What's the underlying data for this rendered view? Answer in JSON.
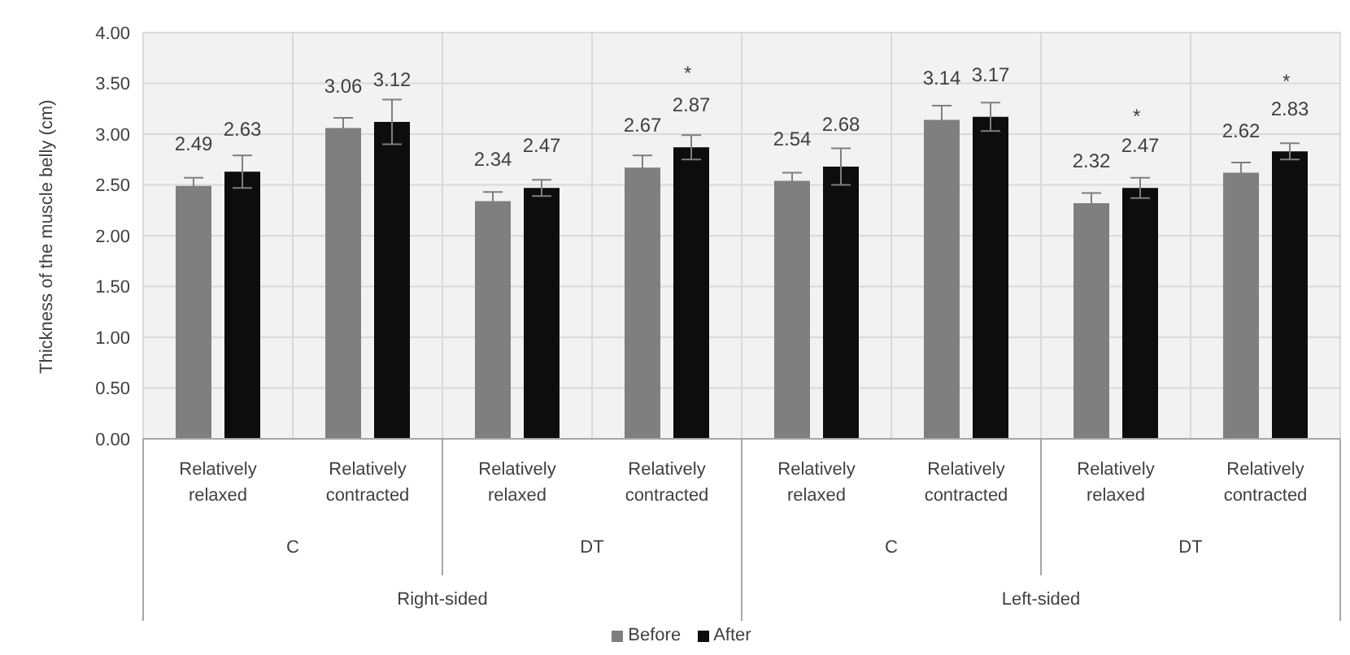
{
  "chart_data": {
    "type": "bar",
    "ylabel": "Thickness of the muscle belly (cm)",
    "categories": [
      "Relatively relaxed",
      "Relatively contracted",
      "Relatively relaxed",
      "Relatively contracted",
      "Relatively relaxed",
      "Relatively contracted",
      "Relatively relaxed",
      "Relatively contracted"
    ],
    "series": [
      {
        "name": "Before",
        "color": "#7f7f7f",
        "values": [
          2.49,
          3.06,
          2.34,
          2.67,
          2.54,
          3.14,
          2.32,
          2.62
        ],
        "errors": [
          0.08,
          0.1,
          0.09,
          0.12,
          0.08,
          0.14,
          0.1,
          0.1
        ]
      },
      {
        "name": "After",
        "color": "#0d0d0d",
        "values": [
          2.63,
          3.12,
          2.47,
          2.87,
          2.68,
          3.17,
          2.47,
          2.83
        ],
        "errors": [
          0.16,
          0.22,
          0.08,
          0.12,
          0.18,
          0.14,
          0.1,
          0.08
        ]
      }
    ],
    "ylim": [
      0,
      4
    ],
    "yticks": [
      {
        "value": 0,
        "label": "0.00"
      },
      {
        "value": 0.5,
        "label": "0.50"
      },
      {
        "value": 1,
        "label": "1.00"
      },
      {
        "value": 1.5,
        "label": "1.50"
      },
      {
        "value": 2,
        "label": "2.00"
      },
      {
        "value": 2.5,
        "label": "2.50"
      },
      {
        "value": 3,
        "label": "3.00"
      },
      {
        "value": 3.5,
        "label": "3.50"
      },
      {
        "value": 4,
        "label": "4.00"
      }
    ],
    "annotations": [
      "C",
      "DT",
      "C",
      "DT",
      "Right-sided",
      "Left-sided",
      "*",
      "*",
      "*"
    ],
    "data_labels": true,
    "grid": true,
    "legend": "bottom"
  }
}
